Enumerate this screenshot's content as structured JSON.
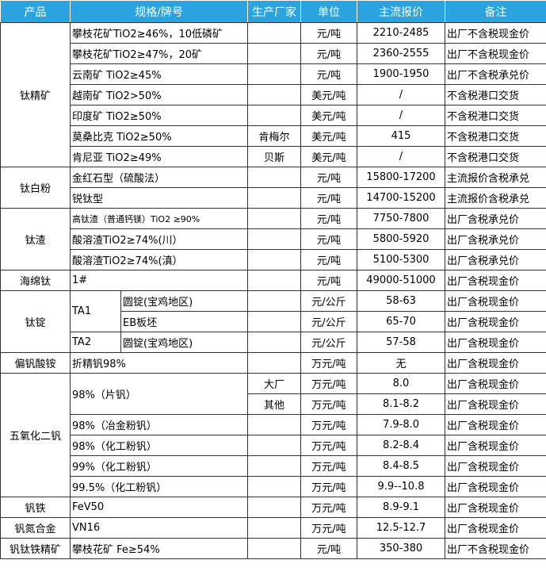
{
  "colors": {
    "header_bg": "#2aa3df",
    "header_text": "#ffffff",
    "border": "#333333"
  },
  "headers": [
    "产品",
    "规格/牌号",
    "生产厂家",
    "单位",
    "主流报价",
    "备注"
  ],
  "groups": {
    "titanium_concentrate": {
      "product": "钛精矿",
      "rows": [
        {
          "spec": "攀枝花矿TiO2≥46%，10低磷矿",
          "maker": "",
          "unit": "元/吨",
          "price": "2210-2485",
          "note": "出厂不含税现金价"
        },
        {
          "spec": "攀枝花矿TiO2≥47%，20矿",
          "maker": "",
          "unit": "元/吨",
          "price": "2360-2555",
          "note": "出厂不含税现金价"
        },
        {
          "spec": "云南矿 TiO2≥45%",
          "maker": "",
          "unit": "元/吨",
          "price": "1900-1950",
          "note": "出厂不含税承兑价"
        },
        {
          "spec": "越南矿 TiO2>50%",
          "maker": "",
          "unit": "美元/吨",
          "price": "/",
          "note": "不含税港口交货"
        },
        {
          "spec": "印度矿 TiO2≥50%",
          "maker": "",
          "unit": "美元/吨",
          "price": "/",
          "note": "不含税港口交货"
        },
        {
          "spec": "莫桑比克 TiO2≥50%",
          "maker": "肯梅尔",
          "unit": "美元/吨",
          "price": "415",
          "note": "不含税港口交货"
        },
        {
          "spec": "肯尼亚 TiO2≥49%",
          "maker": "贝斯",
          "unit": "美元/吨",
          "price": "/",
          "note": "不含税港口交货"
        }
      ]
    },
    "titanium_dioxide": {
      "product": "钛白粉",
      "rows": [
        {
          "spec": "金红石型（硫酸法）",
          "unit": "元/吨",
          "price": "15800-17200",
          "note": "主流报价含税承兑"
        },
        {
          "spec": "锐钛型",
          "unit": "元/吨",
          "price": "14700-15200",
          "note": "主流报价含税承兑"
        }
      ]
    },
    "titanium_slag": {
      "product": "钛渣",
      "rows": [
        {
          "spec": "高钛渣（普通钙镁）TiO2 ≥90%",
          "unit": "元/吨",
          "price": "7750-7800",
          "note": "出厂含税承兑价"
        },
        {
          "spec": "酸溶渣TiO2≥74%(川）",
          "unit": "元/吨",
          "price": "5800-5920",
          "note": "出厂含税承兑价"
        },
        {
          "spec": "酸溶渣TiO2≥74%(滇）",
          "unit": "元/吨",
          "price": "5100-5300",
          "note": "出厂含税承兑价"
        }
      ]
    },
    "sponge_titanium": {
      "product": "海绵钛",
      "rows": [
        {
          "spec": "1#",
          "unit": "元/吨",
          "price": "49000-51000",
          "note": "出厂含税现金价"
        }
      ]
    },
    "titanium_ingot": {
      "product": "钛锭",
      "rows": [
        {
          "grade": "TA1",
          "spec": "圆锭(宝鸡地区)",
          "unit": "元/公斤",
          "price": "58-63",
          "note": "出厂含税现金价"
        },
        {
          "spec": "EB板坯",
          "unit": "元/公斤",
          "price": "65-70",
          "note": "出厂含税现金价"
        },
        {
          "grade": "TA2",
          "spec": "圆锭(宝鸡地区)",
          "unit": "元/公斤",
          "price": "57-58",
          "note": "出厂含税现金价"
        }
      ]
    },
    "ammonium_metavanadate": {
      "product": "偏钒酸铵",
      "rows": [
        {
          "spec": "折精钒98%",
          "unit": "万元/吨",
          "price": "无",
          "note": "出厂含税现金价"
        }
      ]
    },
    "vanadium_pentoxide": {
      "product": "五氧化二钒",
      "rows": [
        {
          "spec": "98%（片钒）",
          "maker": "大厂",
          "unit": "万元/吨",
          "price": "8.0",
          "note": "出厂含税现金价"
        },
        {
          "maker": "其他",
          "unit": "万元/吨",
          "price": "8.1-8.2",
          "note": "出厂含税现金价"
        },
        {
          "spec": "98%（冶金粉钒）",
          "unit": "万元/吨",
          "price": "7.9-8.0",
          "note": "出厂含税现金价"
        },
        {
          "spec": "98%（化工粉钒）",
          "unit": "万元/吨",
          "price": "8.2-8.4",
          "note": "出厂含税现金价"
        },
        {
          "spec": "99%（化工粉钒）",
          "unit": "万元/吨",
          "price": "8.4-8.5",
          "note": "出厂含税现金价"
        },
        {
          "spec": "99.5%（化工粉钒）",
          "unit": "万元/吨",
          "price": "9.9--10.8",
          "note": "出厂含税现金价"
        }
      ]
    },
    "ferrovanadium": {
      "product": "钒铁",
      "rows": [
        {
          "spec": "FeV50",
          "unit": "万元/吨",
          "price": "8.9-9.1",
          "note": "出厂含税现金价"
        }
      ]
    },
    "vanadium_nitrogen": {
      "product": "钒氮合金",
      "rows": [
        {
          "spec": "VN16",
          "unit": "万元/吨",
          "price": "12.5-12.7",
          "note": "出厂含税现金价"
        }
      ]
    },
    "vti_magnetite": {
      "product": "钒钛铁精矿",
      "rows": [
        {
          "spec": "攀枝花矿 Fe≥54%",
          "unit": "元/吨",
          "price": "350-380",
          "note": "出厂不含税现金价"
        }
      ]
    }
  }
}
